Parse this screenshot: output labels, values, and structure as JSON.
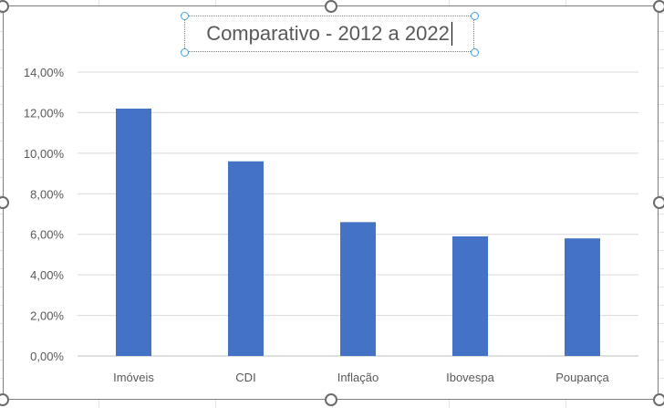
{
  "chart_data": {
    "type": "bar",
    "title": "Comparativo - 2012 a 2022",
    "categories": [
      "Imóveis",
      "CDI",
      "Inflação",
      "Ibovespa",
      "Poupança"
    ],
    "values": [
      12.2,
      9.6,
      6.6,
      5.9,
      5.8
    ],
    "y_ticks": [
      "0,00%",
      "2,00%",
      "4,00%",
      "6,00%",
      "8,00%",
      "10,00%",
      "12,00%",
      "14,00%"
    ],
    "ylim": [
      0,
      14
    ],
    "grid": true,
    "bar_color": "#4472C4",
    "gridline_color": "#d9d9d9"
  }
}
